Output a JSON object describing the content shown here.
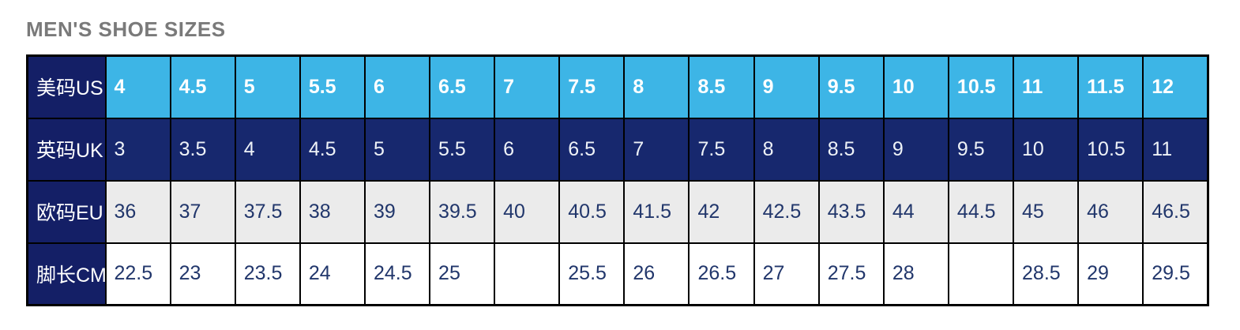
{
  "title": "MEN'S SHOE SIZES",
  "colors": {
    "title_text": "#7a7a7a",
    "us_row_bg": "#3db5e6",
    "uk_row_bg": "#17286e",
    "label_col_bg": "#141f66",
    "eu_row_bg": "#ebebeb",
    "cm_row_bg": "#ffffff",
    "light_text": "#ffffff",
    "dark_text": "#21366b",
    "grid_border": "#000000"
  },
  "table": {
    "rows": [
      {
        "label": "美码US",
        "values": [
          "4",
          "4.5",
          "5",
          "5.5",
          "6",
          "6.5",
          "7",
          "7.5",
          "8",
          "8.5",
          "9",
          "9.5",
          "10",
          "10.5",
          "11",
          "11.5",
          "12"
        ]
      },
      {
        "label": "英码UK",
        "values": [
          "3",
          "3.5",
          "4",
          "4.5",
          "5",
          "5.5",
          "6",
          "6.5",
          "7",
          "7.5",
          "8",
          "8.5",
          "9",
          "9.5",
          "10",
          "10.5",
          "11"
        ]
      },
      {
        "label": "欧码EU",
        "values": [
          "36",
          "37",
          "37.5",
          "38",
          "39",
          "39.5",
          "40",
          "40.5",
          "41.5",
          "42",
          "42.5",
          "43.5",
          "44",
          "44.5",
          "45",
          "46",
          "46.5"
        ]
      },
      {
        "label": "脚长CM",
        "values": [
          "22.5",
          "23",
          "23.5",
          "24",
          "24.5",
          "25",
          "",
          "25.5",
          "26",
          "26.5",
          "27",
          "27.5",
          "28",
          "",
          "28.5",
          "29",
          "29.5"
        ]
      }
    ]
  },
  "chart_data": {
    "type": "table",
    "title": "MEN'S SHOE SIZES",
    "row_headers": [
      "美码US",
      "英码UK",
      "欧码EU",
      "脚长CM"
    ],
    "rows": [
      [
        "4",
        "4.5",
        "5",
        "5.5",
        "6",
        "6.5",
        "7",
        "7.5",
        "8",
        "8.5",
        "9",
        "9.5",
        "10",
        "10.5",
        "11",
        "11.5",
        "12"
      ],
      [
        "3",
        "3.5",
        "4",
        "4.5",
        "5",
        "5.5",
        "6",
        "6.5",
        "7",
        "7.5",
        "8",
        "8.5",
        "9",
        "9.5",
        "10",
        "10.5",
        "11"
      ],
      [
        "36",
        "37",
        "37.5",
        "38",
        "39",
        "39.5",
        "40",
        "40.5",
        "41.5",
        "42",
        "42.5",
        "43.5",
        "44",
        "44.5",
        "45",
        "46",
        "46.5"
      ],
      [
        "22.5",
        "23",
        "23.5",
        "24",
        "24.5",
        "25",
        "",
        "25.5",
        "26",
        "26.5",
        "27",
        "27.5",
        "28",
        "",
        "28.5",
        "29",
        "29.5"
      ]
    ]
  }
}
